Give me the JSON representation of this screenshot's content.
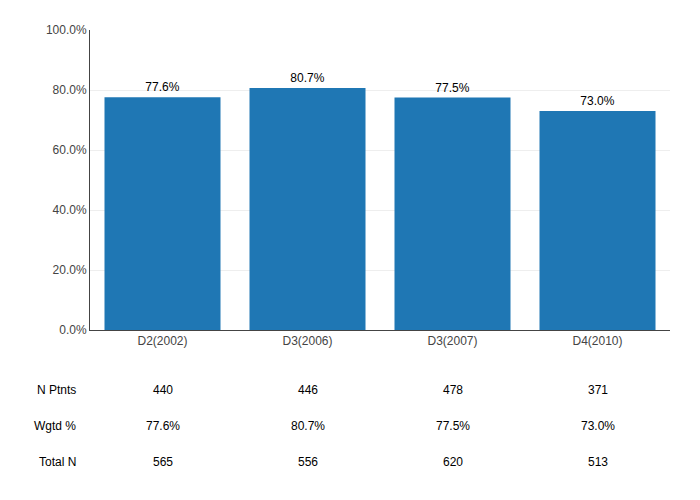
{
  "chart_data": {
    "type": "bar",
    "categories": [
      "D2(2002)",
      "D3(2006)",
      "D3(2007)",
      "D4(2010)"
    ],
    "values": [
      77.6,
      80.7,
      77.5,
      73.0
    ],
    "value_labels": [
      "77.6%",
      "80.7%",
      "77.5%",
      "73.0%"
    ],
    "data_labels": true,
    "ylim": [
      0,
      100
    ],
    "yticks": [
      {
        "value": 0,
        "label": "0.0%"
      },
      {
        "value": 20,
        "label": "20.0%"
      },
      {
        "value": 40,
        "label": "40.0%"
      },
      {
        "value": 60,
        "label": "60.0%"
      },
      {
        "value": 80,
        "label": "80.0%"
      },
      {
        "value": 100,
        "label": "100.0%"
      }
    ],
    "grid": true,
    "table_rows": [
      {
        "label": "N Ptnts",
        "values": [
          440,
          446,
          478,
          371
        ]
      },
      {
        "label": "Wgtd %",
        "values": [
          77.6,
          80.7,
          77.5,
          73.0
        ],
        "value_labels": [
          "77.6%",
          "80.7%",
          "77.5%",
          "73.0%"
        ]
      },
      {
        "label": "Total N",
        "values": [
          565,
          556,
          620,
          513
        ]
      }
    ]
  }
}
